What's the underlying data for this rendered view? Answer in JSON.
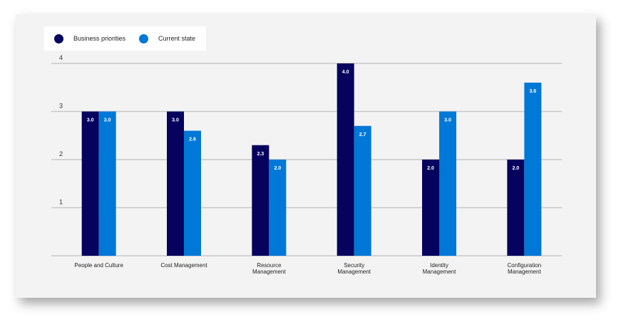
{
  "chart_data": {
    "type": "bar",
    "title": "",
    "xlabel": "",
    "ylabel": "",
    "ylim": [
      0,
      4
    ],
    "yticks": [
      "1",
      "2",
      "3",
      "4"
    ],
    "grid": true,
    "legend_position": "top-left",
    "categories": [
      [
        "People and Culture"
      ],
      [
        "Cost Management"
      ],
      [
        "Resource",
        "Management"
      ],
      [
        "Security",
        "Management"
      ],
      [
        "Identity",
        "Management"
      ],
      [
        "Configuration",
        "Management"
      ]
    ],
    "series": [
      {
        "name": "Business priorities",
        "color": "#05035e",
        "values": [
          3.0,
          3.0,
          2.3,
          4.0,
          2.0,
          2.0
        ],
        "labels": [
          "3.0",
          "3.0",
          "2.3",
          "4.0",
          "2.0",
          "2.0"
        ]
      },
      {
        "name": "Current state",
        "color": "#0078d7",
        "values": [
          3.0,
          2.6,
          2.0,
          2.7,
          3.0,
          3.6
        ],
        "labels": [
          "3.0",
          "2.6",
          "2.0",
          "2.7",
          "3.0",
          "3.6"
        ]
      }
    ]
  }
}
